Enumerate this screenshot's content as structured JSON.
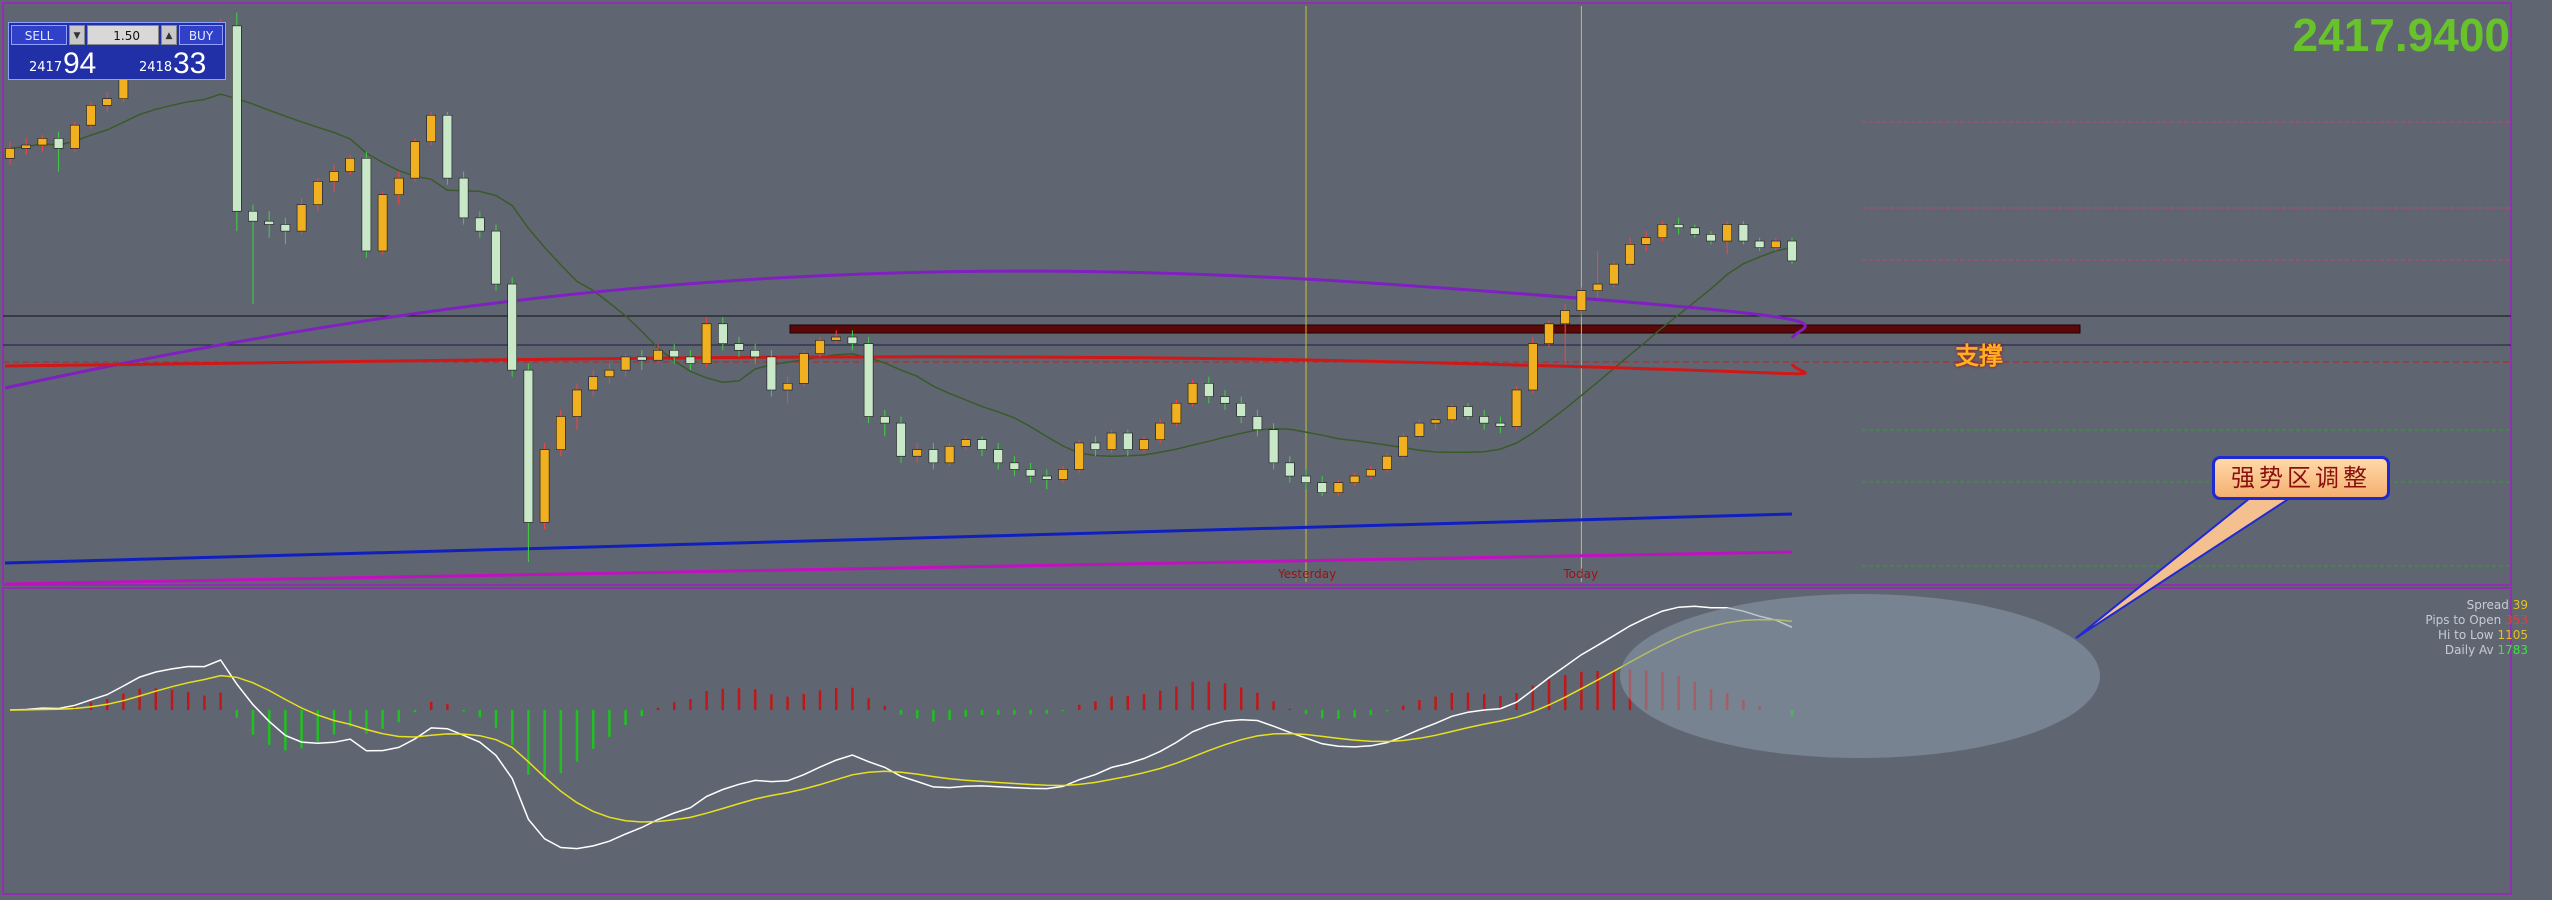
{
  "trade_panel": {
    "sell_label": "SELL",
    "buy_label": "BUY",
    "lot": "1.50",
    "sell_small": "2417",
    "sell_big": "94",
    "buy_small": "2418",
    "buy_big": "33"
  },
  "current_price": "2417.9400",
  "annotations": {
    "support": "支撑",
    "callout": "强势区调整",
    "yesterday": "Yesterday",
    "today": "Today"
  },
  "stats": {
    "spread_label": "Spread",
    "spread": "39",
    "pips_label": "Pips to Open",
    "pips": "353",
    "hilo_label": "Hi to Low",
    "hilo": "1105",
    "daily_label": "Daily Av",
    "daily": "1783"
  },
  "colors": {
    "bull": "#f0b020",
    "bear": "#c8e8c8",
    "ma_short": "#3a5a28",
    "ma_purple": "#8020c0",
    "ma_red": "#d01818",
    "ma_blue": "#1020c0",
    "ma_magenta": "#c010c0",
    "macd_white": "#ffffff",
    "macd_yellow": "#e8e020",
    "hist_red": "#c01818",
    "hist_green": "#20c020",
    "big_price": "#68c22a"
  },
  "chart_data": {
    "type": "candlestick",
    "candles": [
      [
        2409.0,
        2411.5,
        2408.0,
        2410.5
      ],
      [
        2410.5,
        2412.0,
        2409.5,
        2411.0
      ],
      [
        2411.0,
        2412.5,
        2410.0,
        2412.0
      ],
      [
        2412.0,
        2413.0,
        2407.0,
        2410.5
      ],
      [
        2410.5,
        2414.5,
        2410.0,
        2414.0
      ],
      [
        2414.0,
        2417.5,
        2413.5,
        2417.0
      ],
      [
        2417.0,
        2419.0,
        2416.0,
        2418.0
      ],
      [
        2418.0,
        2423.0,
        2417.5,
        2422.5
      ],
      [
        2422.5,
        2425.5,
        2422.0,
        2425.0
      ],
      [
        2425.0,
        2426.0,
        2423.0,
        2423.5
      ],
      [
        2423.5,
        2424.0,
        2422.0,
        2423.0
      ],
      [
        2423.0,
        2424.0,
        2422.0,
        2423.5
      ],
      [
        2423.5,
        2424.5,
        2421.0,
        2422.0
      ],
      [
        2422.0,
        2430.0,
        2421.5,
        2429.0
      ],
      [
        2429.0,
        2431.0,
        2398.0,
        2401.0
      ],
      [
        2401.0,
        2402.0,
        2387.0,
        2399.5
      ],
      [
        2399.5,
        2401.0,
        2397.0,
        2399.0
      ],
      [
        2399.0,
        2400.0,
        2396.0,
        2398.0
      ],
      [
        2398.0,
        2403.0,
        2397.5,
        2402.0
      ],
      [
        2402.0,
        2406.0,
        2401.0,
        2405.5
      ],
      [
        2405.5,
        2408.0,
        2404.0,
        2407.0
      ],
      [
        2407.0,
        2409.5,
        2406.5,
        2409.0
      ],
      [
        2409.0,
        2410.0,
        2394.0,
        2395.0
      ],
      [
        2395.0,
        2404.0,
        2394.5,
        2403.5
      ],
      [
        2403.5,
        2407.0,
        2402.0,
        2406.0
      ],
      [
        2406.0,
        2412.0,
        2405.5,
        2411.5
      ],
      [
        2411.5,
        2416.0,
        2411.0,
        2415.5
      ],
      [
        2415.5,
        2416.0,
        2405.0,
        2406.0
      ],
      [
        2406.0,
        2407.0,
        2399.0,
        2400.0
      ],
      [
        2400.0,
        2401.0,
        2397.0,
        2398.0
      ],
      [
        2398.0,
        2399.0,
        2389.0,
        2390.0
      ],
      [
        2390.0,
        2391.0,
        2376.0,
        2377.0
      ],
      [
        2377.0,
        2378.0,
        2348.0,
        2354.0
      ],
      [
        2354.0,
        2366.0,
        2353.0,
        2365.0
      ],
      [
        2365.0,
        2371.0,
        2364.0,
        2370.0
      ],
      [
        2370.0,
        2375.0,
        2368.0,
        2374.0
      ],
      [
        2374.0,
        2377.0,
        2373.0,
        2376.0
      ],
      [
        2376.0,
        2378.0,
        2375.0,
        2377.0
      ],
      [
        2377.0,
        2379.5,
        2376.0,
        2379.0
      ],
      [
        2379.0,
        2380.0,
        2377.0,
        2378.5
      ],
      [
        2378.5,
        2381.0,
        2378.0,
        2380.0
      ],
      [
        2380.0,
        2381.0,
        2378.0,
        2379.0
      ],
      [
        2379.0,
        2380.0,
        2377.0,
        2378.0
      ],
      [
        2378.0,
        2385.0,
        2377.5,
        2384.0
      ],
      [
        2384.0,
        2385.0,
        2380.0,
        2381.0
      ],
      [
        2381.0,
        2382.0,
        2379.0,
        2380.0
      ],
      [
        2380.0,
        2381.0,
        2378.0,
        2379.0
      ],
      [
        2379.0,
        2380.0,
        2373.0,
        2374.0
      ],
      [
        2374.0,
        2376.0,
        2372.0,
        2375.0
      ],
      [
        2375.0,
        2380.0,
        2374.5,
        2379.5
      ],
      [
        2379.5,
        2382.0,
        2379.0,
        2381.5
      ],
      [
        2381.5,
        2383.0,
        2381.0,
        2382.0
      ],
      [
        2382.0,
        2383.0,
        2380.0,
        2381.0
      ],
      [
        2381.0,
        2382.0,
        2369.0,
        2370.0
      ],
      [
        2370.0,
        2371.0,
        2367.0,
        2369.0
      ],
      [
        2369.0,
        2370.0,
        2363.0,
        2364.0
      ],
      [
        2364.0,
        2366.0,
        2363.0,
        2365.0
      ],
      [
        2365.0,
        2366.0,
        2362.0,
        2363.0
      ],
      [
        2363.0,
        2366.0,
        2362.5,
        2365.5
      ],
      [
        2365.5,
        2367.0,
        2365.0,
        2366.5
      ],
      [
        2366.5,
        2367.0,
        2364.0,
        2365.0
      ],
      [
        2365.0,
        2366.0,
        2362.0,
        2363.0
      ],
      [
        2363.0,
        2364.0,
        2361.0,
        2362.0
      ],
      [
        2362.0,
        2363.0,
        2360.0,
        2361.0
      ],
      [
        2361.0,
        2362.0,
        2359.0,
        2360.5
      ],
      [
        2360.5,
        2362.5,
        2360.0,
        2362.0
      ],
      [
        2362.0,
        2366.5,
        2361.5,
        2366.0
      ],
      [
        2366.0,
        2367.0,
        2364.0,
        2365.0
      ],
      [
        2365.0,
        2368.0,
        2364.5,
        2367.5
      ],
      [
        2367.5,
        2368.0,
        2364.0,
        2365.0
      ],
      [
        2365.0,
        2367.0,
        2364.5,
        2366.5
      ],
      [
        2366.5,
        2369.5,
        2366.0,
        2369.0
      ],
      [
        2369.0,
        2372.5,
        2368.5,
        2372.0
      ],
      [
        2372.0,
        2375.5,
        2371.5,
        2375.0
      ],
      [
        2375.0,
        2376.0,
        2372.0,
        2373.0
      ],
      [
        2373.0,
        2374.0,
        2371.0,
        2372.0
      ],
      [
        2372.0,
        2373.0,
        2369.0,
        2370.0
      ],
      [
        2370.0,
        2371.0,
        2367.0,
        2368.0
      ],
      [
        2368.0,
        2369.0,
        2362.0,
        2363.0
      ],
      [
        2363.0,
        2364.0,
        2360.0,
        2361.0
      ],
      [
        2361.0,
        2362.0,
        2359.0,
        2360.0
      ],
      [
        2360.0,
        2361.0,
        2358.0,
        2358.5
      ],
      [
        2358.5,
        2360.5,
        2358.0,
        2360.0
      ],
      [
        2360.0,
        2361.5,
        2359.5,
        2361.0
      ],
      [
        2361.0,
        2362.5,
        2360.5,
        2362.0
      ],
      [
        2362.0,
        2364.5,
        2361.5,
        2364.0
      ],
      [
        2364.0,
        2367.5,
        2363.5,
        2367.0
      ],
      [
        2367.0,
        2369.5,
        2366.5,
        2369.0
      ],
      [
        2369.0,
        2370.0,
        2368.0,
        2369.5
      ],
      [
        2369.5,
        2372.0,
        2369.0,
        2371.5
      ],
      [
        2371.5,
        2372.0,
        2369.5,
        2370.0
      ],
      [
        2370.0,
        2371.0,
        2368.0,
        2369.0
      ],
      [
        2369.0,
        2370.0,
        2367.5,
        2368.5
      ],
      [
        2368.5,
        2374.5,
        2368.0,
        2374.0
      ],
      [
        2374.0,
        2382.0,
        2373.5,
        2381.0
      ],
      [
        2381.0,
        2384.5,
        2380.5,
        2384.0
      ],
      [
        2384.0,
        2387.0,
        2378.0,
        2386.0
      ],
      [
        2386.0,
        2389.5,
        2385.0,
        2389.0
      ],
      [
        2389.0,
        2395.0,
        2388.0,
        2390.0
      ],
      [
        2390.0,
        2393.5,
        2389.5,
        2393.0
      ],
      [
        2393.0,
        2397.0,
        2392.5,
        2396.0
      ],
      [
        2396.0,
        2398.0,
        2395.0,
        2397.0
      ],
      [
        2397.0,
        2399.5,
        2396.5,
        2399.0
      ],
      [
        2399.0,
        2400.0,
        2397.5,
        2398.5
      ],
      [
        2398.5,
        2399.0,
        2397.0,
        2397.5
      ],
      [
        2397.5,
        2398.0,
        2396.0,
        2396.5
      ],
      [
        2396.5,
        2399.5,
        2394.5,
        2399.0
      ],
      [
        2399.0,
        2399.5,
        2396.0,
        2396.5
      ],
      [
        2396.5,
        2397.0,
        2395.0,
        2395.5
      ],
      [
        2395.5,
        2397.0,
        2395.0,
        2396.5
      ],
      [
        2396.5,
        2397.0,
        2393.0,
        2393.5
      ]
    ],
    "yesterday_index": 80,
    "today_index": 97
  }
}
